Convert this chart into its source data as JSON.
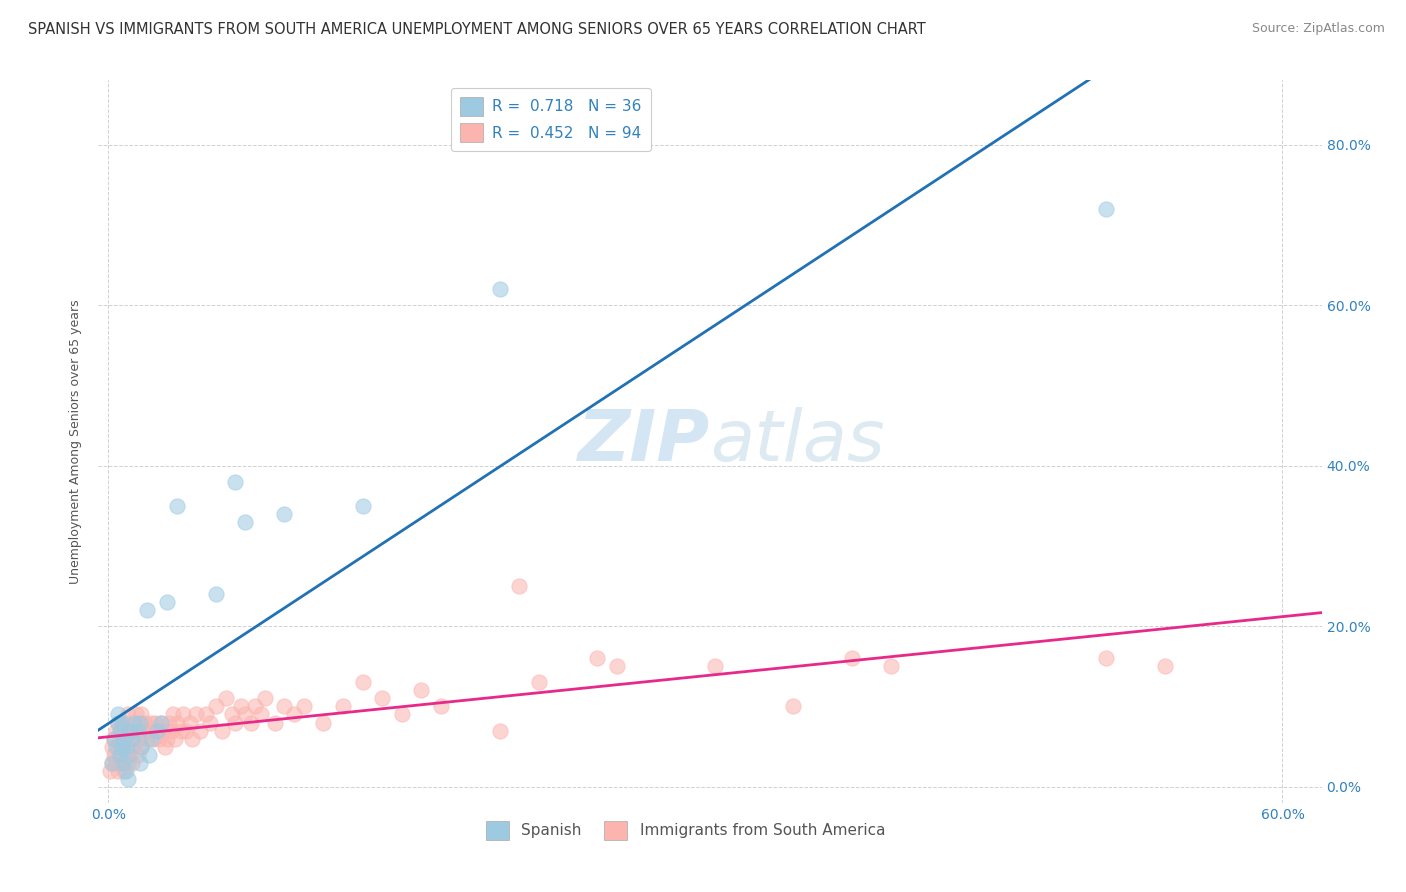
{
  "title": "SPANISH VS IMMIGRANTS FROM SOUTH AMERICA UNEMPLOYMENT AMONG SENIORS OVER 65 YEARS CORRELATION CHART",
  "source": "Source: ZipAtlas.com",
  "ylabel": "Unemployment Among Seniors over 65 years",
  "xlim": [
    -0.005,
    0.62
  ],
  "ylim": [
    -0.02,
    0.88
  ],
  "xtick_positions": [
    0.0,
    0.6
  ],
  "xtick_labels": [
    "0.0%",
    "60.0%"
  ],
  "ytick_positions": [
    0.0,
    0.2,
    0.4,
    0.6,
    0.8
  ],
  "ytick_labels_right": [
    "0.0%",
    "20.0%",
    "40.0%",
    "60.0%",
    "80.0%"
  ],
  "legend1_label": "R =  0.718   N = 36",
  "legend2_label": "R =  0.452   N = 94",
  "color_spanish": "#9ecae1",
  "color_immigrants": "#fbb4ae",
  "color_line_spanish": "#2171b5",
  "color_line_immigrants": "#e7298a",
  "watermark_part1": "ZIP",
  "watermark_part2": "atlas",
  "background_color": "#ffffff",
  "grid_color": "#cccccc",
  "title_fontsize": 10.5,
  "source_fontsize": 9,
  "axis_label_fontsize": 9,
  "tick_fontsize": 10,
  "legend_fontsize": 11,
  "watermark_fontsize_big": 52,
  "watermark_fontsize_small": 52,
  "watermark_color": "#c8dff0",
  "spanish_x": [
    0.002,
    0.003,
    0.004,
    0.005,
    0.005,
    0.006,
    0.006,
    0.007,
    0.007,
    0.008,
    0.008,
    0.009,
    0.009,
    0.01,
    0.01,
    0.011,
    0.012,
    0.013,
    0.015,
    0.016,
    0.016,
    0.017,
    0.02,
    0.021,
    0.022,
    0.025,
    0.027,
    0.03,
    0.035,
    0.055,
    0.065,
    0.07,
    0.09,
    0.13,
    0.2,
    0.51
  ],
  "spanish_y": [
    0.03,
    0.06,
    0.05,
    0.08,
    0.09,
    0.04,
    0.07,
    0.05,
    0.08,
    0.03,
    0.06,
    0.02,
    0.05,
    0.01,
    0.04,
    0.07,
    0.06,
    0.08,
    0.07,
    0.08,
    0.03,
    0.05,
    0.22,
    0.04,
    0.06,
    0.07,
    0.08,
    0.23,
    0.35,
    0.24,
    0.38,
    0.33,
    0.34,
    0.35,
    0.62,
    0.72
  ],
  "immigrants_x": [
    0.001,
    0.002,
    0.002,
    0.003,
    0.003,
    0.004,
    0.004,
    0.005,
    0.005,
    0.005,
    0.006,
    0.006,
    0.007,
    0.007,
    0.007,
    0.008,
    0.008,
    0.009,
    0.009,
    0.01,
    0.01,
    0.01,
    0.011,
    0.011,
    0.012,
    0.012,
    0.013,
    0.014,
    0.014,
    0.015,
    0.015,
    0.016,
    0.017,
    0.017,
    0.018,
    0.019,
    0.02,
    0.021,
    0.022,
    0.023,
    0.024,
    0.025,
    0.026,
    0.027,
    0.028,
    0.029,
    0.03,
    0.031,
    0.032,
    0.033,
    0.034,
    0.035,
    0.037,
    0.038,
    0.04,
    0.042,
    0.043,
    0.045,
    0.047,
    0.05,
    0.052,
    0.055,
    0.058,
    0.06,
    0.063,
    0.065,
    0.068,
    0.07,
    0.073,
    0.075,
    0.078,
    0.08,
    0.085,
    0.09,
    0.095,
    0.1,
    0.11,
    0.12,
    0.13,
    0.14,
    0.15,
    0.16,
    0.17,
    0.2,
    0.21,
    0.22,
    0.25,
    0.26,
    0.31,
    0.35,
    0.38,
    0.4,
    0.51,
    0.54
  ],
  "immigrants_y": [
    0.02,
    0.03,
    0.05,
    0.04,
    0.06,
    0.03,
    0.07,
    0.02,
    0.05,
    0.08,
    0.04,
    0.07,
    0.03,
    0.06,
    0.08,
    0.02,
    0.07,
    0.04,
    0.08,
    0.03,
    0.06,
    0.09,
    0.04,
    0.07,
    0.03,
    0.06,
    0.05,
    0.07,
    0.09,
    0.04,
    0.08,
    0.06,
    0.05,
    0.09,
    0.07,
    0.08,
    0.06,
    0.07,
    0.08,
    0.06,
    0.08,
    0.07,
    0.06,
    0.08,
    0.07,
    0.05,
    0.06,
    0.08,
    0.07,
    0.09,
    0.06,
    0.08,
    0.07,
    0.09,
    0.07,
    0.08,
    0.06,
    0.09,
    0.07,
    0.09,
    0.08,
    0.1,
    0.07,
    0.11,
    0.09,
    0.08,
    0.1,
    0.09,
    0.08,
    0.1,
    0.09,
    0.11,
    0.08,
    0.1,
    0.09,
    0.1,
    0.08,
    0.1,
    0.13,
    0.11,
    0.09,
    0.12,
    0.1,
    0.07,
    0.25,
    0.13,
    0.16,
    0.15,
    0.15,
    0.1,
    0.16,
    0.15,
    0.16,
    0.15
  ]
}
